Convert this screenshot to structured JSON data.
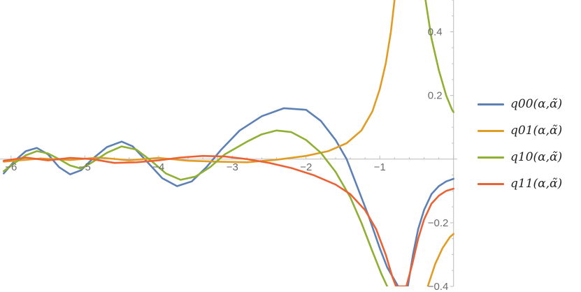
{
  "chart_data": {
    "type": "line",
    "title": "",
    "xlabel": "",
    "ylabel": "",
    "xlim": [
      -6.15,
      0.05
    ],
    "ylim": [
      -0.4,
      0.5
    ],
    "x_ticks": [
      -6,
      -5,
      -4,
      -3,
      -2,
      -1
    ],
    "x_tick_labels": [
      "−6",
      "−5",
      "−4",
      "−3",
      "−2",
      "−1"
    ],
    "y_ticks": [
      -0.4,
      -0.2,
      0.2,
      0.4
    ],
    "y_tick_labels": [
      "−0.4",
      "−0.2",
      "0.2",
      "0.4"
    ],
    "legend_position": "right",
    "grid": false,
    "series": [
      {
        "name": "q00(α,α̃)",
        "color": "#5e81b5",
        "points": [
          [
            -6.1,
            -0.045
          ],
          [
            -5.95,
            -0.005
          ],
          [
            -5.8,
            0.025
          ],
          [
            -5.65,
            0.035
          ],
          [
            -5.5,
            0.015
          ],
          [
            -5.35,
            -0.025
          ],
          [
            -5.2,
            -0.048
          ],
          [
            -5.05,
            -0.035
          ],
          [
            -4.9,
            0.0
          ],
          [
            -4.7,
            0.038
          ],
          [
            -4.5,
            0.055
          ],
          [
            -4.35,
            0.04
          ],
          [
            -4.15,
            -0.01
          ],
          [
            -3.95,
            -0.06
          ],
          [
            -3.75,
            -0.085
          ],
          [
            -3.55,
            -0.07
          ],
          [
            -3.35,
            -0.025
          ],
          [
            -3.15,
            0.03
          ],
          [
            -2.9,
            0.09
          ],
          [
            -2.6,
            0.135
          ],
          [
            -2.3,
            0.16
          ],
          [
            -2.0,
            0.155
          ],
          [
            -1.8,
            0.12
          ],
          [
            -1.6,
            0.06
          ],
          [
            -1.45,
            0.0
          ],
          [
            -1.3,
            -0.09
          ],
          [
            -1.15,
            -0.18
          ],
          [
            -1.0,
            -0.28
          ],
          [
            -0.9,
            -0.34
          ],
          [
            -0.8,
            -0.38
          ],
          [
            -0.75,
            -0.4
          ],
          [
            -0.62,
            -0.4
          ],
          [
            -0.55,
            -0.3
          ],
          [
            -0.48,
            -0.22
          ],
          [
            -0.4,
            -0.16
          ],
          [
            -0.3,
            -0.11
          ],
          [
            -0.2,
            -0.085
          ],
          [
            -0.1,
            -0.07
          ],
          [
            0.0,
            -0.062
          ]
        ]
      },
      {
        "name": "q01(α,α̃)",
        "color": "#e19c24",
        "points": [
          [
            -6.1,
            -0.008
          ],
          [
            -5.6,
            0.002
          ],
          [
            -5.2,
            -0.003
          ],
          [
            -4.8,
            0.005
          ],
          [
            -4.4,
            -0.004
          ],
          [
            -4.0,
            0.004
          ],
          [
            -3.6,
            -0.005
          ],
          [
            -3.2,
            -0.008
          ],
          [
            -2.8,
            -0.01
          ],
          [
            -2.4,
            -0.002
          ],
          [
            -2.0,
            0.01
          ],
          [
            -1.7,
            0.025
          ],
          [
            -1.45,
            0.05
          ],
          [
            -1.25,
            0.09
          ],
          [
            -1.1,
            0.15
          ],
          [
            -1.0,
            0.22
          ],
          [
            -0.92,
            0.3
          ],
          [
            -0.85,
            0.4
          ],
          [
            -0.8,
            0.5
          ],
          [
            -0.35,
            -0.4
          ],
          [
            -0.25,
            -0.33
          ],
          [
            -0.15,
            -0.28
          ],
          [
            -0.05,
            -0.245
          ],
          [
            0.0,
            -0.235
          ]
        ]
      },
      {
        "name": "q10(α,α̃)",
        "color": "#8fb032",
        "points": [
          [
            -6.1,
            -0.038
          ],
          [
            -5.95,
            -0.012
          ],
          [
            -5.8,
            0.012
          ],
          [
            -5.65,
            0.025
          ],
          [
            -5.5,
            0.018
          ],
          [
            -5.35,
            0.0
          ],
          [
            -5.2,
            -0.02
          ],
          [
            -5.05,
            -0.03
          ],
          [
            -4.9,
            -0.01
          ],
          [
            -4.7,
            0.02
          ],
          [
            -4.5,
            0.04
          ],
          [
            -4.3,
            0.03
          ],
          [
            -4.1,
            -0.005
          ],
          [
            -3.9,
            -0.045
          ],
          [
            -3.7,
            -0.065
          ],
          [
            -3.5,
            -0.055
          ],
          [
            -3.3,
            -0.025
          ],
          [
            -3.1,
            0.015
          ],
          [
            -2.8,
            0.055
          ],
          [
            -2.6,
            0.078
          ],
          [
            -2.4,
            0.09
          ],
          [
            -2.2,
            0.085
          ],
          [
            -2.0,
            0.06
          ],
          [
            -1.8,
            0.02
          ],
          [
            -1.6,
            -0.04
          ],
          [
            -1.4,
            -0.12
          ],
          [
            -1.25,
            -0.2
          ],
          [
            -1.1,
            -0.29
          ],
          [
            -0.98,
            -0.36
          ],
          [
            -0.9,
            -0.4
          ],
          [
            -0.38,
            0.5
          ],
          [
            -0.3,
            0.38
          ],
          [
            -0.2,
            0.28
          ],
          [
            -0.1,
            0.2
          ],
          [
            -0.02,
            0.155
          ],
          [
            0.0,
            0.148
          ]
        ]
      },
      {
        "name": "q11(α,α̃)",
        "color": "#eb6235",
        "points": [
          [
            -6.1,
            -0.005
          ],
          [
            -5.8,
            0.005
          ],
          [
            -5.5,
            -0.004
          ],
          [
            -5.2,
            0.004
          ],
          [
            -4.9,
            0.0
          ],
          [
            -4.6,
            -0.012
          ],
          [
            -4.3,
            -0.01
          ],
          [
            -4.0,
            -0.004
          ],
          [
            -3.7,
            0.005
          ],
          [
            -3.4,
            0.01
          ],
          [
            -3.1,
            0.008
          ],
          [
            -2.8,
            0.0
          ],
          [
            -2.5,
            -0.012
          ],
          [
            -2.2,
            -0.028
          ],
          [
            -1.9,
            -0.05
          ],
          [
            -1.6,
            -0.08
          ],
          [
            -1.4,
            -0.11
          ],
          [
            -1.2,
            -0.16
          ],
          [
            -1.05,
            -0.22
          ],
          [
            -0.92,
            -0.3
          ],
          [
            -0.83,
            -0.37
          ],
          [
            -0.78,
            -0.4
          ],
          [
            -0.64,
            -0.4
          ],
          [
            -0.56,
            -0.33
          ],
          [
            -0.48,
            -0.25
          ],
          [
            -0.4,
            -0.19
          ],
          [
            -0.3,
            -0.14
          ],
          [
            -0.2,
            -0.115
          ],
          [
            -0.1,
            -0.1
          ],
          [
            0.0,
            -0.093
          ]
        ]
      }
    ]
  }
}
